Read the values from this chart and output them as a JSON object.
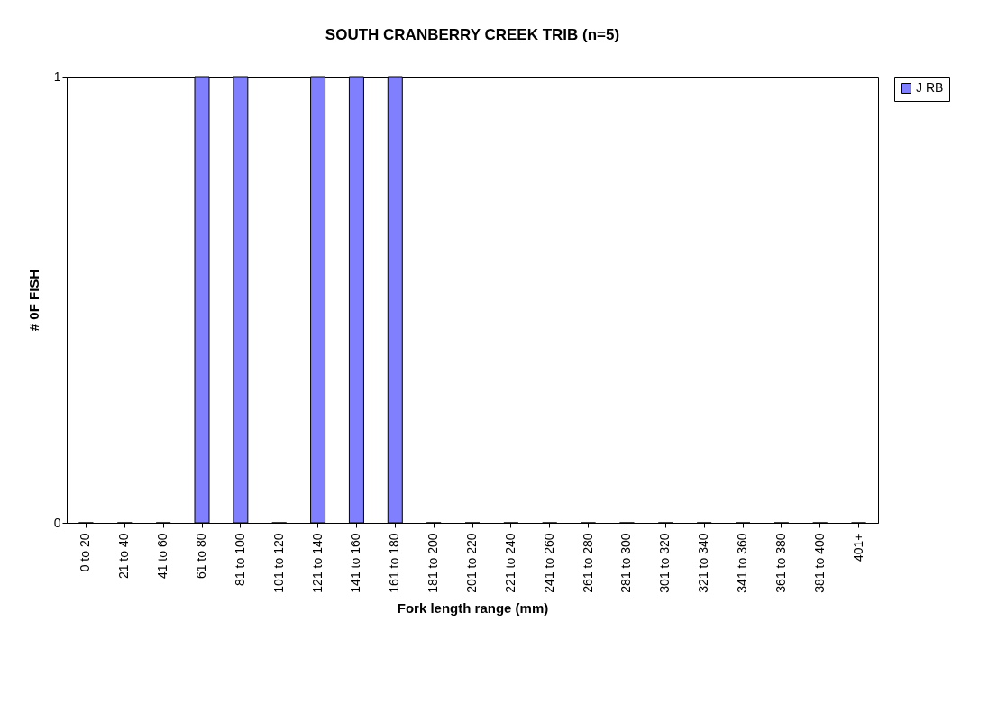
{
  "chart_data": {
    "type": "bar",
    "title": "SOUTH CRANBERRY CREEK TRIB (n=5)",
    "xlabel": "Fork length range (mm)",
    "ylabel": "# 0F FISH",
    "categories": [
      "0 to 20",
      "21 to 40",
      "41 to 60",
      "61 to 80",
      "81 to 100",
      "101 to 120",
      "121 to 140",
      "141 to 160",
      "161 to 180",
      "181 to 200",
      "201 to 220",
      "221 to 240",
      "241 to 260",
      "261 to 280",
      "281 to 300",
      "301 to 320",
      "321 to 340",
      "341 to 360",
      "361 to 380",
      "381 to 400",
      "401+"
    ],
    "series": [
      {
        "name": "J RB",
        "color": "#8080ff",
        "values": [
          0,
          0,
          0,
          1,
          1,
          0,
          1,
          1,
          1,
          0,
          0,
          0,
          0,
          0,
          0,
          0,
          0,
          0,
          0,
          0,
          0
        ]
      }
    ],
    "ylim": [
      0,
      1
    ],
    "yticks": [
      0,
      1
    ],
    "grid": false,
    "legend": "right"
  }
}
